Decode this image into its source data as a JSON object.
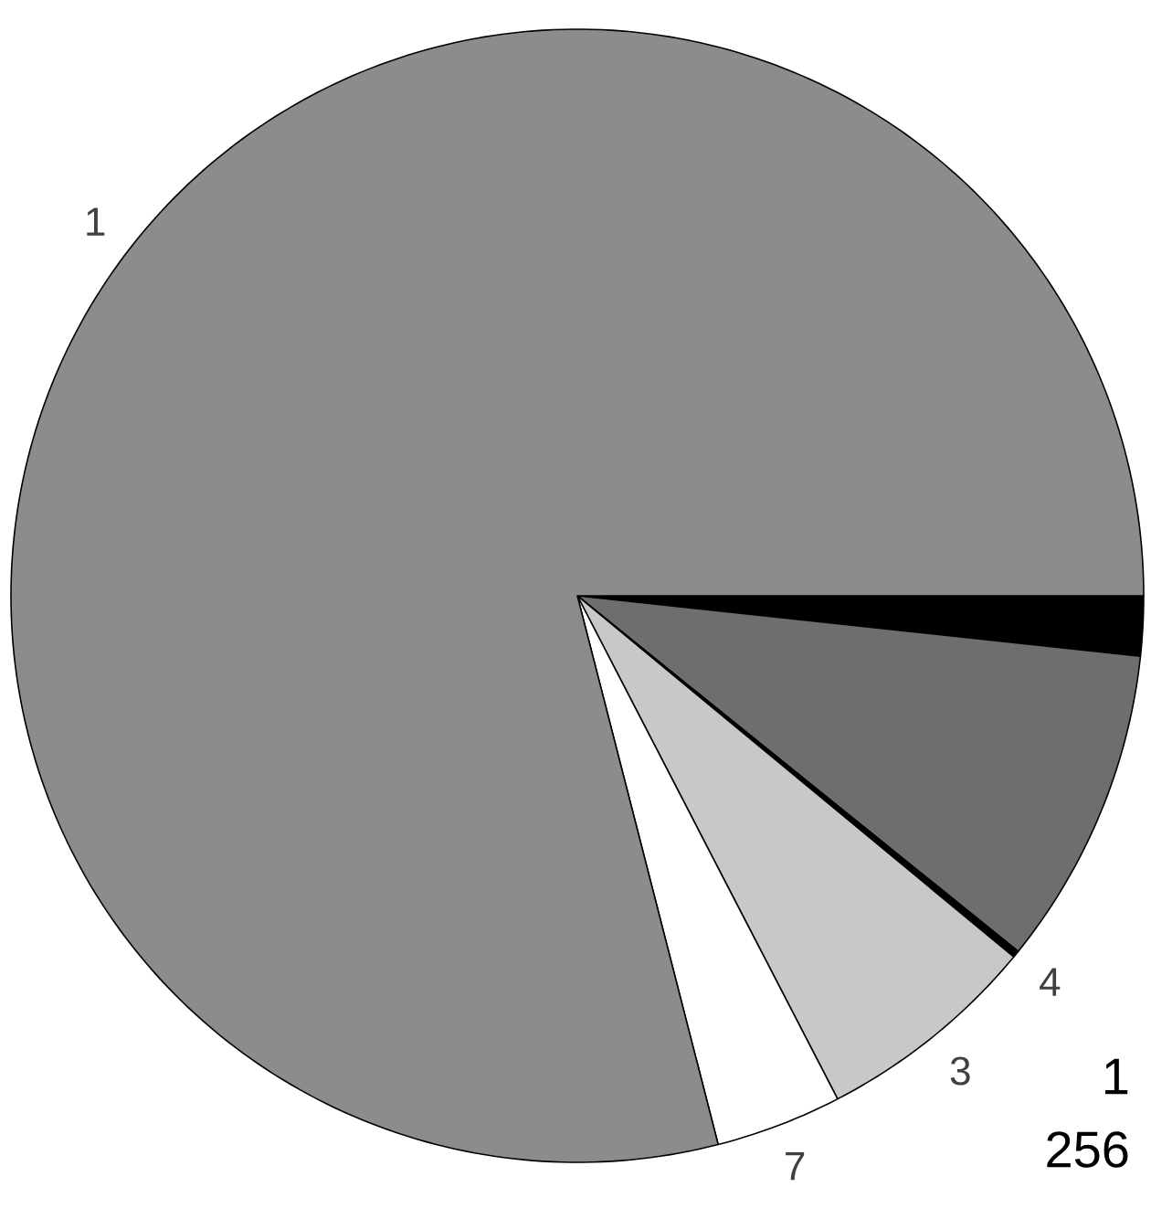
{
  "chart_data": {
    "type": "pie",
    "categories": [
      null,
      null,
      "4",
      "3",
      "7",
      "1"
    ],
    "values": [
      1.7,
      9.1,
      0.2,
      6.4,
      3.6,
      79.0
    ],
    "colors": [
      "#000000",
      "#6e6e6e",
      "#000000",
      "#c8c8c8",
      "#ffffff",
      "#8c8c8c"
    ],
    "annotations": [
      "1",
      "256"
    ]
  }
}
